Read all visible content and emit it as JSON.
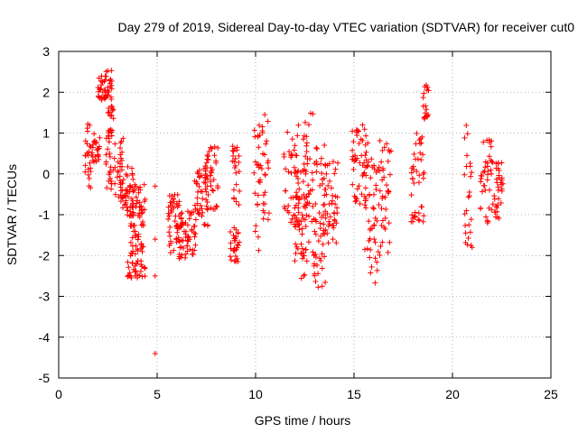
{
  "chart_data": {
    "type": "scatter",
    "title": "Day 279 of 2019, Sidereal Day-to-day VTEC variation (SDTVAR) for receiver cut0",
    "xlabel": "GPS time / hours",
    "ylabel": "SDTVAR / TECUs",
    "xlim": [
      0,
      25
    ],
    "ylim": [
      -5,
      3
    ],
    "xticks": [
      0,
      5,
      10,
      15,
      20,
      25
    ],
    "yticks": [
      -5,
      -4,
      -3,
      -2,
      -1,
      0,
      1,
      2,
      3
    ],
    "grid": true,
    "marker": "+",
    "series": [
      {
        "name": "SDTVAR",
        "color": "#ff0000",
        "segments": [
          {
            "x": [
              1.3,
              1.7
            ],
            "y": [
              -0.5,
              1.3
            ]
          },
          {
            "x": [
              1.7,
              2.1
            ],
            "y": [
              0.2,
              1.0
            ]
          },
          {
            "x": [
              2.0,
              2.4
            ],
            "y": [
              1.8,
              2.4
            ]
          },
          {
            "x": [
              2.3,
              2.7
            ],
            "y": [
              1.8,
              2.6
            ]
          },
          {
            "x": [
              2.4,
              2.8
            ],
            "y": [
              -0.4,
              1.0
            ]
          },
          {
            "x": [
              2.5,
              2.8
            ],
            "y": [
              1.0,
              1.8
            ]
          },
          {
            "x": [
              2.8,
              3.3
            ],
            "y": [
              -0.6,
              0.9
            ]
          },
          {
            "x": [
              3.1,
              3.8
            ],
            "y": [
              -1.1,
              0.2
            ]
          },
          {
            "x": [
              3.6,
              4.4
            ],
            "y": [
              -1.3,
              -0.2
            ]
          },
          {
            "x": [
              3.5,
              4.4
            ],
            "y": [
              -2.6,
              -1.4
            ]
          },
          {
            "x": [
              5.5,
              6.3
            ],
            "y": [
              -2.0,
              -0.4
            ]
          },
          {
            "x": [
              6.0,
              7.0
            ],
            "y": [
              -2.1,
              -0.8
            ]
          },
          {
            "x": [
              6.9,
              7.6
            ],
            "y": [
              -1.3,
              0.2
            ]
          },
          {
            "x": [
              7.4,
              8.1
            ],
            "y": [
              -0.9,
              0.7
            ]
          },
          {
            "x": [
              8.7,
              9.2
            ],
            "y": [
              -2.2,
              -1.3
            ]
          },
          {
            "x": [
              8.8,
              9.2
            ],
            "y": [
              -0.9,
              0.7
            ]
          },
          {
            "x": [
              9.9,
              10.3
            ],
            "y": [
              -1.9,
              1.2
            ]
          },
          {
            "x": [
              10.3,
              10.7
            ],
            "y": [
              -1.2,
              1.7
            ]
          },
          {
            "x": [
              11.4,
              12.2
            ],
            "y": [
              -1.3,
              1.2
            ]
          },
          {
            "x": [
              11.9,
              12.7
            ],
            "y": [
              -2.2,
              0.5
            ]
          },
          {
            "x": [
              12.3,
              13.0
            ],
            "y": [
              -2.6,
              1.5
            ]
          },
          {
            "x": [
              12.9,
              13.6
            ],
            "y": [
              -2.8,
              0.8
            ]
          },
          {
            "x": [
              13.3,
              14.2
            ],
            "y": [
              -2.0,
              0.3
            ]
          },
          {
            "x": [
              14.9,
              15.7
            ],
            "y": [
              -1.0,
              1.3
            ]
          },
          {
            "x": [
              15.5,
              16.3
            ],
            "y": [
              -2.7,
              0.4
            ]
          },
          {
            "x": [
              16.3,
              16.9
            ],
            "y": [
              -2.0,
              0.9
            ]
          },
          {
            "x": [
              17.9,
              18.6
            ],
            "y": [
              -1.2,
              1.1
            ]
          },
          {
            "x": [
              18.5,
              18.8
            ],
            "y": [
              1.2,
              2.2
            ]
          },
          {
            "x": [
              20.6,
              21.0
            ],
            "y": [
              -1.8,
              1.2
            ]
          },
          {
            "x": [
              21.4,
              22.0
            ],
            "y": [
              -1.3,
              0.9
            ]
          },
          {
            "x": [
              22.0,
              22.6
            ],
            "y": [
              -1.1,
              0.4
            ]
          }
        ],
        "points": [
          {
            "x": 4.9,
            "y": -0.3
          },
          {
            "x": 4.9,
            "y": -1.6
          },
          {
            "x": 4.9,
            "y": -2.5
          },
          {
            "x": 4.9,
            "y": -4.4
          },
          {
            "x": 21.0,
            "y": -1.8
          }
        ]
      }
    ]
  }
}
